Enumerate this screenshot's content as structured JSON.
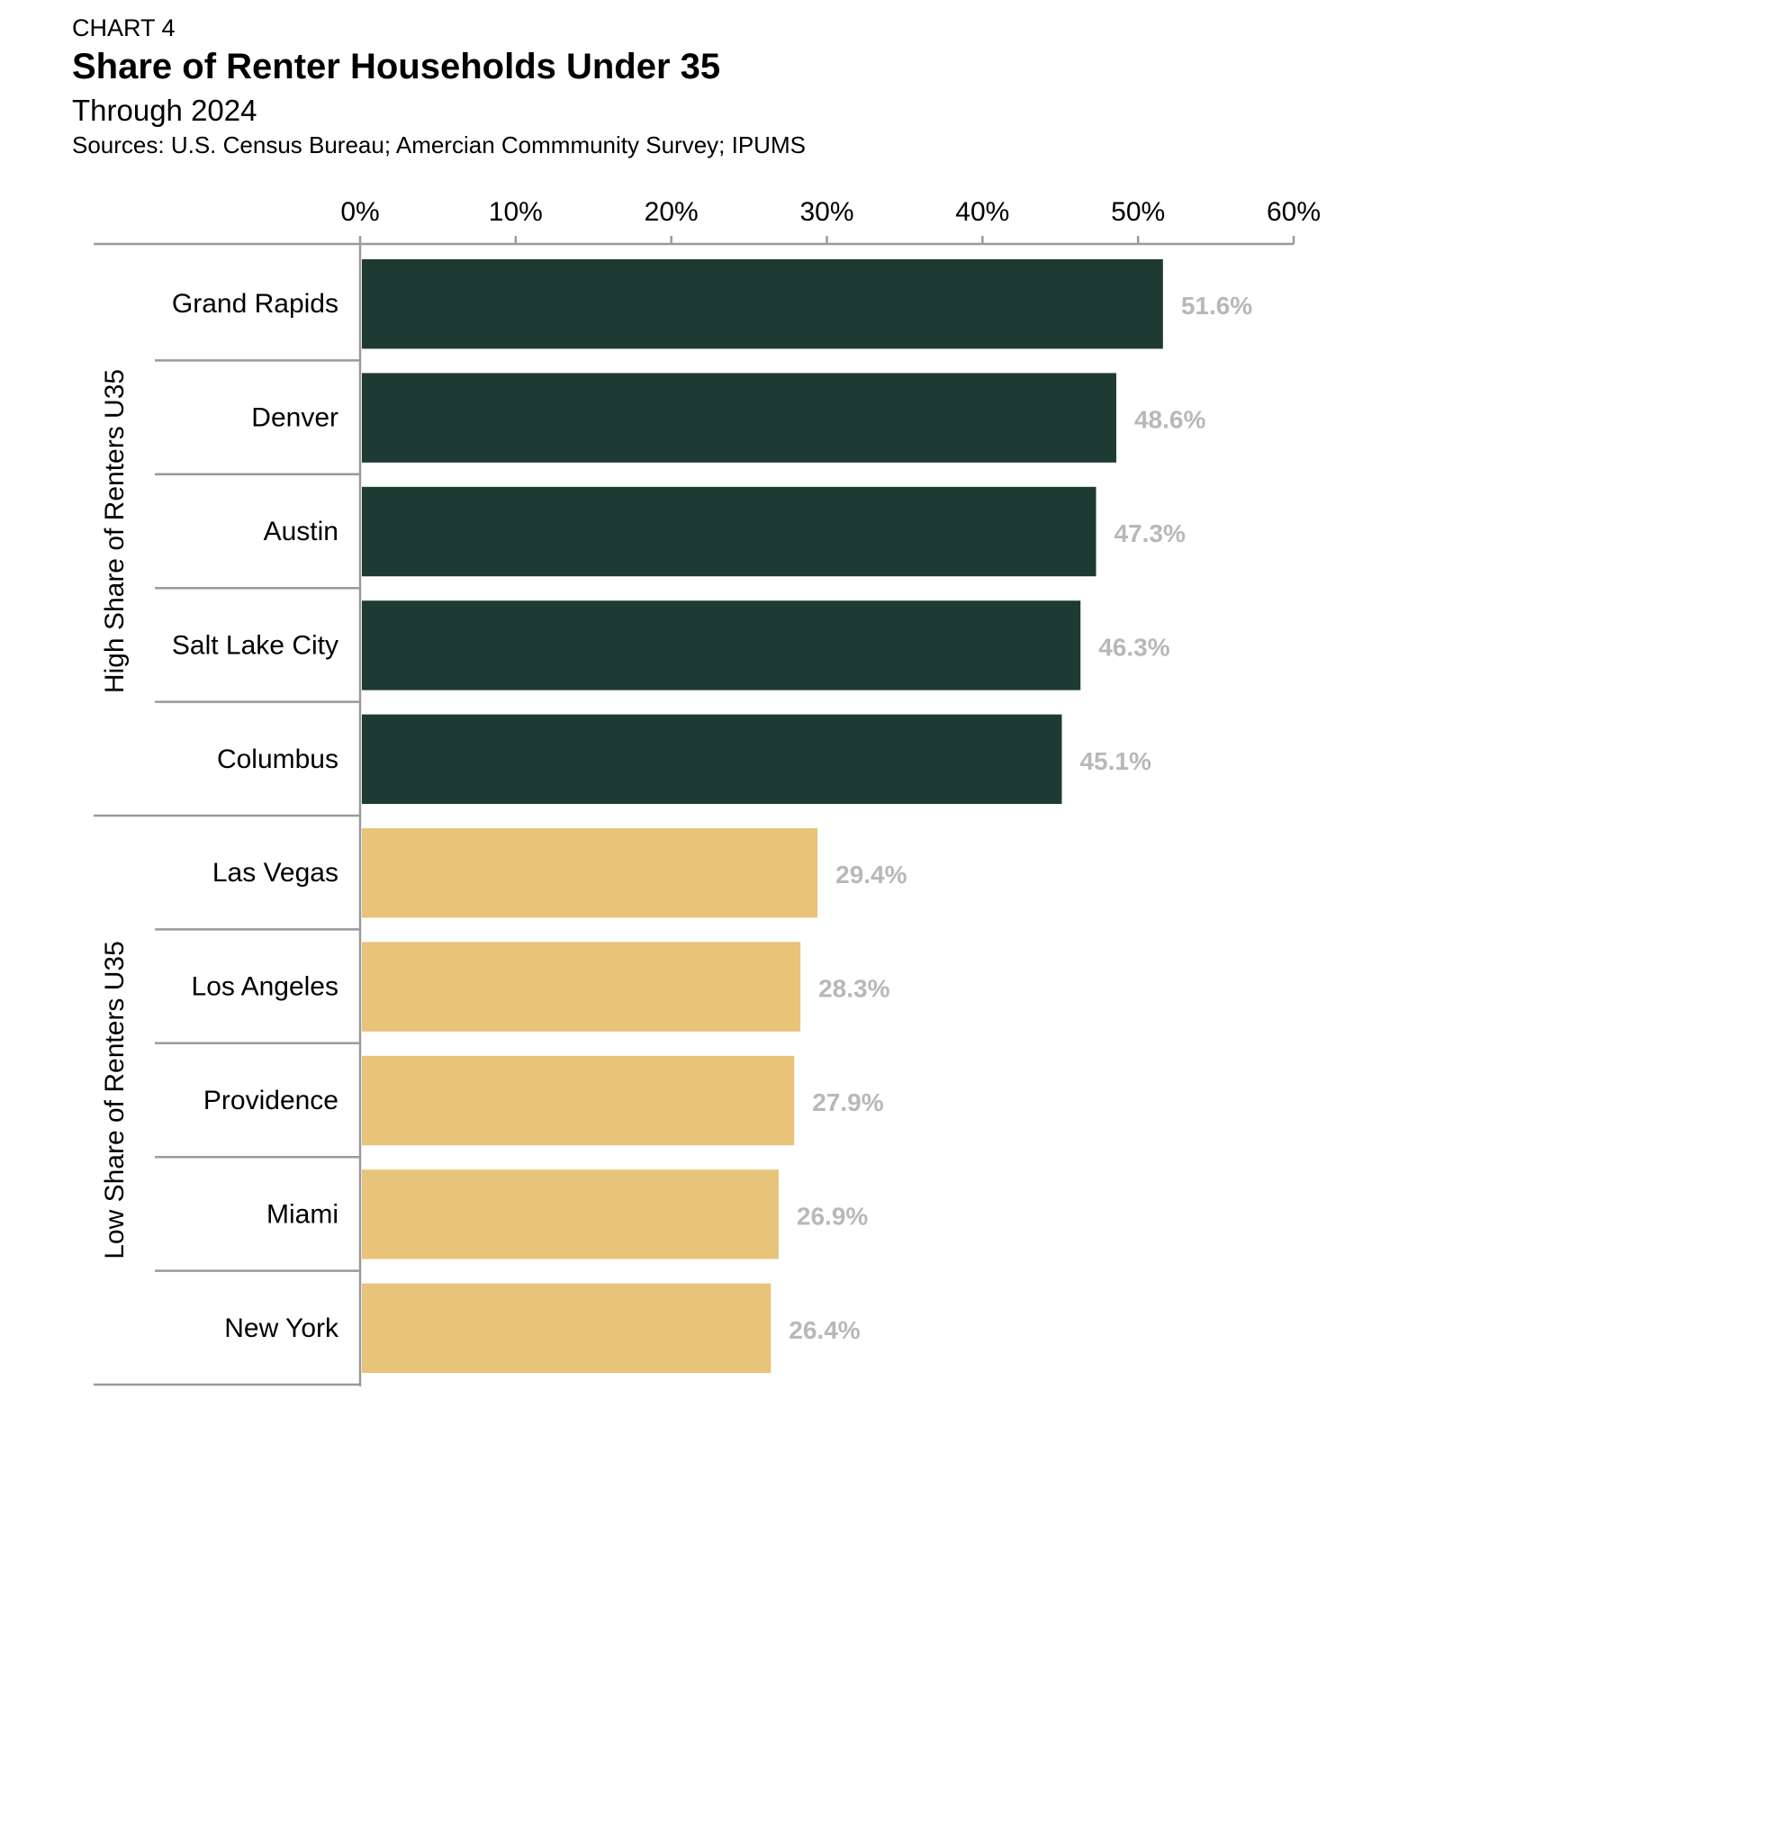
{
  "header": {
    "label": "CHART 4",
    "title": "Share of Renter Households Under 35",
    "subtitle": "Through 2024",
    "sources": "Sources: U.S. Census Bureau; Amercian Commmunity Survey; IPUMS"
  },
  "chart_data": {
    "type": "bar",
    "orientation": "horizontal",
    "title": "Share of Renter Households Under 35",
    "subtitle": "Through 2024",
    "xlabel": "",
    "ylabel": "",
    "xlim": [
      0,
      60
    ],
    "ticks": [
      0,
      10,
      20,
      30,
      40,
      50,
      60
    ],
    "tick_labels": [
      "0%",
      "10%",
      "20%",
      "30%",
      "40%",
      "50%",
      "60%"
    ],
    "axis_position": "top",
    "grid": false,
    "groups": [
      {
        "name": "High Share of Renters U35",
        "color": "#1e3b33",
        "categories": [
          "Grand Rapids",
          "Denver",
          "Austin",
          "Salt Lake City",
          "Columbus"
        ],
        "values": [
          51.6,
          48.6,
          47.3,
          46.3,
          45.1
        ],
        "labels": [
          "51.6%",
          "48.6%",
          "47.3%",
          "46.3%",
          "45.1%"
        ]
      },
      {
        "name": "Low Share of Renters U35",
        "color": "#e8c37a",
        "categories": [
          "Las Vegas",
          "Los Angeles",
          "Providence",
          "Miami",
          "New York"
        ],
        "values": [
          29.4,
          28.3,
          27.9,
          26.9,
          26.4
        ],
        "labels": [
          "29.4%",
          "28.3%",
          "27.9%",
          "26.9%",
          "26.4%"
        ]
      }
    ],
    "value_label_color": "#b8b8b8"
  }
}
